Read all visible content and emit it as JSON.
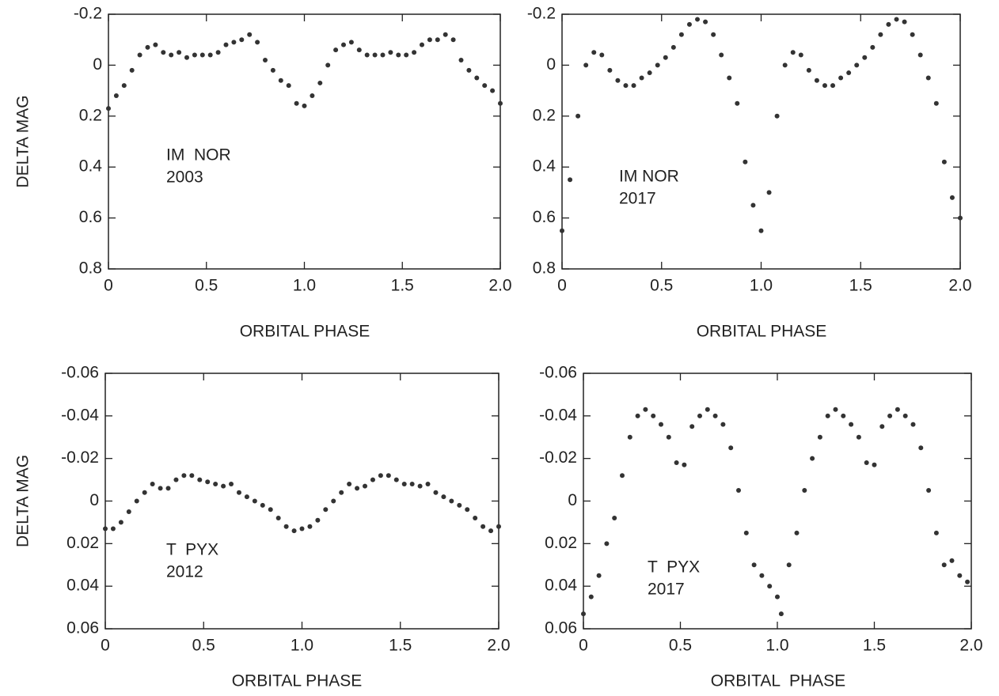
{
  "chart_data": [
    {
      "type": "scatter",
      "color": "#333333",
      "xlabel": "ORBITAL PHASE",
      "ylabel": "DELTA MAG",
      "annotation": [
        "IM  NOR",
        "2003"
      ],
      "xlim": [
        0,
        2
      ],
      "xticks": [
        0,
        0.5,
        {
          "value": 1,
          "label": "1.0"
        },
        1.5,
        {
          "value": 2,
          "label": "2.0"
        }
      ],
      "ylim": [
        0.8,
        -0.2
      ],
      "yticks": [
        -0.2,
        0,
        0.2,
        0.4,
        0.6,
        0.8
      ],
      "x": [
        0,
        0.04,
        0.08,
        0.12,
        0.16,
        0.2,
        0.24,
        0.28,
        0.32,
        0.36,
        0.4,
        0.44,
        0.48,
        0.52,
        0.56,
        0.6,
        0.64,
        0.68,
        0.72,
        0.76,
        0.8,
        0.84,
        0.88,
        0.92,
        0.96,
        1.0,
        1.04,
        1.08,
        1.12,
        1.16,
        1.2,
        1.24,
        1.28,
        1.32,
        1.36,
        1.4,
        1.44,
        1.48,
        1.52,
        1.56,
        1.6,
        1.64,
        1.68,
        1.72,
        1.76,
        1.8,
        1.84,
        1.88,
        1.92,
        1.96,
        2.0
      ],
      "values": [
        0.17,
        0.12,
        0.08,
        0.02,
        -0.04,
        -0.07,
        -0.08,
        -0.05,
        -0.04,
        -0.05,
        -0.03,
        -0.04,
        -0.04,
        -0.04,
        -0.05,
        -0.08,
        -0.09,
        -0.1,
        -0.12,
        -0.09,
        -0.02,
        0.02,
        0.06,
        0.08,
        0.15,
        0.16,
        0.12,
        0.07,
        0.0,
        -0.06,
        -0.08,
        -0.09,
        -0.06,
        -0.04,
        -0.04,
        -0.04,
        -0.05,
        -0.04,
        -0.04,
        -0.05,
        -0.08,
        -0.1,
        -0.1,
        -0.12,
        -0.1,
        -0.02,
        0.02,
        0.05,
        0.08,
        0.1,
        0.15
      ]
    },
    {
      "type": "scatter",
      "color": "#333333",
      "xlabel": "ORBITAL PHASE",
      "annotation": [
        "IM NOR",
        "2017"
      ],
      "xlim": [
        0,
        2
      ],
      "xticks": [
        0,
        0.5,
        {
          "value": 1,
          "label": "1.0"
        },
        1.5,
        {
          "value": 2,
          "label": "2.0"
        }
      ],
      "ylim": [
        0.8,
        -0.2
      ],
      "yticks": [
        -0.2,
        0,
        0.2,
        0.4,
        0.6,
        0.8
      ],
      "x": [
        0,
        0.04,
        0.08,
        0.12,
        0.16,
        0.2,
        0.24,
        0.28,
        0.32,
        0.36,
        0.4,
        0.44,
        0.48,
        0.52,
        0.56,
        0.6,
        0.64,
        0.68,
        0.72,
        0.76,
        0.8,
        0.84,
        0.88,
        0.92,
        0.96,
        1.0,
        1.04,
        1.08,
        1.12,
        1.16,
        1.2,
        1.24,
        1.28,
        1.32,
        1.36,
        1.4,
        1.44,
        1.48,
        1.52,
        1.56,
        1.6,
        1.64,
        1.68,
        1.72,
        1.76,
        1.8,
        1.84,
        1.88,
        1.92,
        1.96,
        2.0
      ],
      "values": [
        0.65,
        0.45,
        0.2,
        0.0,
        -0.05,
        -0.04,
        0.02,
        0.06,
        0.08,
        0.08,
        0.05,
        0.03,
        0.0,
        -0.03,
        -0.07,
        -0.12,
        -0.16,
        -0.18,
        -0.17,
        -0.12,
        -0.04,
        0.05,
        0.15,
        0.38,
        0.55,
        0.65,
        0.5,
        0.2,
        0.0,
        -0.05,
        -0.04,
        0.02,
        0.06,
        0.08,
        0.08,
        0.05,
        0.03,
        0.0,
        -0.03,
        -0.07,
        -0.12,
        -0.16,
        -0.18,
        -0.17,
        -0.12,
        -0.04,
        0.05,
        0.15,
        0.38,
        0.52,
        0.6
      ]
    },
    {
      "type": "scatter",
      "color": "#333333",
      "xlabel": "ORBITAL PHASE",
      "ylabel": "DELTA MAG",
      "annotation": [
        "T  PYX",
        "2012"
      ],
      "xlim": [
        0,
        2
      ],
      "xticks": [
        0,
        0.5,
        {
          "value": 1,
          "label": "1.0"
        },
        1.5,
        {
          "value": 2,
          "label": "2.0"
        }
      ],
      "ylim": [
        0.06,
        -0.06
      ],
      "yticks": [
        -0.06,
        -0.04,
        -0.02,
        0,
        0.02,
        0.04,
        0.06
      ],
      "x": [
        0,
        0.04,
        0.08,
        0.12,
        0.16,
        0.2,
        0.24,
        0.28,
        0.32,
        0.36,
        0.4,
        0.44,
        0.48,
        0.52,
        0.56,
        0.6,
        0.64,
        0.68,
        0.72,
        0.76,
        0.8,
        0.84,
        0.88,
        0.92,
        0.96,
        1.0,
        1.04,
        1.08,
        1.12,
        1.16,
        1.2,
        1.24,
        1.28,
        1.32,
        1.36,
        1.4,
        1.44,
        1.48,
        1.52,
        1.56,
        1.6,
        1.64,
        1.68,
        1.72,
        1.76,
        1.8,
        1.84,
        1.88,
        1.92,
        1.96,
        2.0
      ],
      "values": [
        0.013,
        0.013,
        0.01,
        0.005,
        0.0,
        -0.004,
        -0.008,
        -0.006,
        -0.006,
        -0.01,
        -0.012,
        -0.012,
        -0.01,
        -0.009,
        -0.008,
        -0.007,
        -0.008,
        -0.004,
        -0.002,
        0.0,
        0.002,
        0.004,
        0.008,
        0.012,
        0.014,
        0.013,
        0.012,
        0.009,
        0.004,
        0.0,
        -0.004,
        -0.008,
        -0.006,
        -0.007,
        -0.01,
        -0.012,
        -0.012,
        -0.01,
        -0.008,
        -0.008,
        -0.007,
        -0.008,
        -0.004,
        -0.002,
        0.0,
        0.002,
        0.004,
        0.008,
        0.012,
        0.014,
        0.012
      ]
    },
    {
      "type": "scatter",
      "color": "#333333",
      "xlabel": "ORBITAL  PHASE",
      "annotation": [
        "T  PYX",
        "2017"
      ],
      "xlim": [
        0,
        2
      ],
      "xticks": [
        0,
        0.5,
        {
          "value": 1,
          "label": "1.0"
        },
        1.5,
        {
          "value": 2,
          "label": "2.0"
        }
      ],
      "ylim": [
        0.06,
        -0.06
      ],
      "yticks": [
        -0.06,
        -0.04,
        -0.02,
        0,
        0.02,
        0.04,
        0.06
      ],
      "x": [
        0,
        0.04,
        0.08,
        0.12,
        0.16,
        0.2,
        0.24,
        0.28,
        0.32,
        0.36,
        0.4,
        0.44,
        0.48,
        0.52,
        0.56,
        0.6,
        0.64,
        0.68,
        0.72,
        0.76,
        0.8,
        0.84,
        0.88,
        0.92,
        0.96,
        1.0,
        1.02,
        1.06,
        1.1,
        1.14,
        1.18,
        1.22,
        1.26,
        1.3,
        1.34,
        1.38,
        1.42,
        1.46,
        1.5,
        1.54,
        1.58,
        1.62,
        1.66,
        1.7,
        1.74,
        1.78,
        1.82,
        1.86,
        1.9,
        1.94,
        1.98
      ],
      "values": [
        0.053,
        0.045,
        0.035,
        0.02,
        0.008,
        -0.012,
        -0.03,
        -0.04,
        -0.043,
        -0.04,
        -0.036,
        -0.03,
        -0.018,
        -0.017,
        -0.035,
        -0.04,
        -0.043,
        -0.04,
        -0.036,
        -0.025,
        -0.005,
        0.015,
        0.03,
        0.035,
        0.04,
        0.045,
        0.053,
        0.03,
        0.015,
        -0.005,
        -0.02,
        -0.03,
        -0.04,
        -0.043,
        -0.04,
        -0.036,
        -0.03,
        -0.018,
        -0.017,
        -0.035,
        -0.04,
        -0.043,
        -0.04,
        -0.036,
        -0.025,
        -0.005,
        0.015,
        0.03,
        0.028,
        0.035,
        0.038
      ]
    }
  ]
}
